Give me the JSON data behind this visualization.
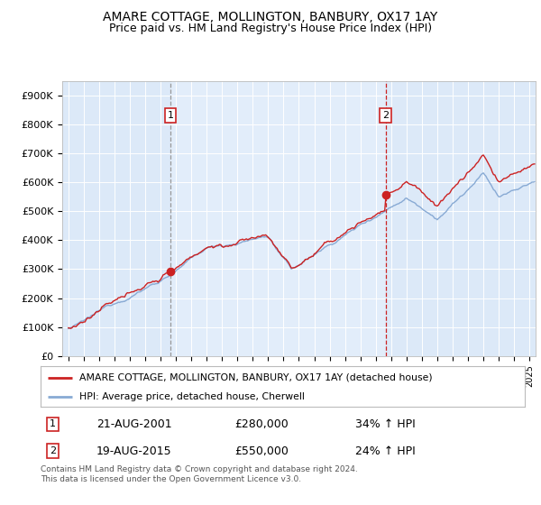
{
  "title": "AMARE COTTAGE, MOLLINGTON, BANBURY, OX17 1AY",
  "subtitle": "Price paid vs. HM Land Registry's House Price Index (HPI)",
  "ylim": [
    0,
    950000
  ],
  "yticks": [
    0,
    100000,
    200000,
    300000,
    400000,
    500000,
    600000,
    700000,
    800000,
    900000
  ],
  "yticklabels": [
    "£0",
    "£100K",
    "£200K",
    "£300K",
    "£400K",
    "£500K",
    "£600K",
    "£700K",
    "£800K",
    "£900K"
  ],
  "plot_bg": "#dce9f8",
  "line_color_red": "#cc2222",
  "line_color_blue": "#88aad4",
  "marker1_year": 2001.64,
  "marker1_value": 280000,
  "marker2_year": 2015.64,
  "marker2_value": 550000,
  "legend_label_red": "AMARE COTTAGE, MOLLINGTON, BANBURY, OX17 1AY (detached house)",
  "legend_label_blue": "HPI: Average price, detached house, Cherwell",
  "annotation1_date": "21-AUG-2001",
  "annotation1_price": "£280,000",
  "annotation1_hpi": "34% ↑ HPI",
  "annotation2_date": "19-AUG-2015",
  "annotation2_price": "£550,000",
  "annotation2_hpi": "24% ↑ HPI",
  "footer": "Contains HM Land Registry data © Crown copyright and database right 2024.\nThis data is licensed under the Open Government Licence v3.0.",
  "title_fontsize": 10,
  "subtitle_fontsize": 9
}
